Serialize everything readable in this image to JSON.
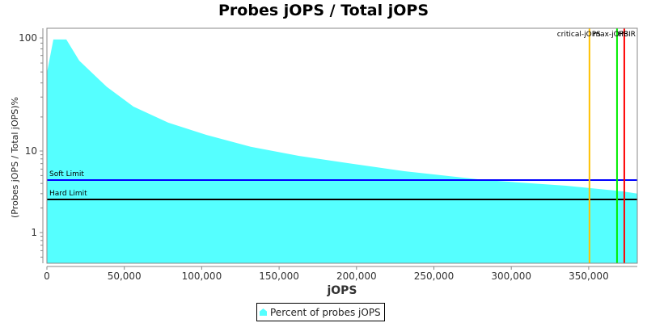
{
  "chart_data": {
    "type": "area",
    "title": "Probes jOPS / Total jOPS",
    "xlabel": "jOPS",
    "ylabel": "(Probes jOPS / Total jOPS)%",
    "y_scale": "log",
    "xlim": [
      0,
      381400
    ],
    "ylim": [
      0.5,
      130
    ],
    "x_ticks": [
      0,
      50000,
      100000,
      150000,
      200000,
      250000,
      300000,
      350000
    ],
    "x_tick_labels": [
      "0",
      "50,000",
      "100,000",
      "150,000",
      "200,000",
      "250,000",
      "300,000",
      "350,000"
    ],
    "y_ticks": [
      1,
      10,
      100
    ],
    "y_tick_labels": [
      "1",
      "10",
      "100"
    ],
    "grid": false,
    "legend_position": "bottom",
    "series": [
      {
        "name": "Percent of probes jOPS",
        "color": "#55ffff",
        "x": [
          0,
          4180,
          12540,
          20900,
          38660,
          55900,
          78370,
          102900,
          131660,
          163000,
          194360,
          230930,
          283180,
          335420,
          372000,
          381400
        ],
        "values": [
          49,
          97,
          97,
          63,
          37,
          24.7,
          17.8,
          13.9,
          10.9,
          8.7,
          7.1,
          5.65,
          4.4,
          3.75,
          3.2,
          3.0
        ]
      }
    ],
    "horizontal_lines": [
      {
        "label": "Soft Limit",
        "value": 4.4,
        "color": "#0000ff"
      },
      {
        "label": "Hard Limit",
        "value": 2.55,
        "color": "#000000"
      }
    ],
    "vertical_lines": [
      {
        "label": "critical-jOPS",
        "value": 350500,
        "color": "#ffc000"
      },
      {
        "label": "max-jOPS",
        "value": 368300,
        "color": "#00ee00"
      },
      {
        "label": "HBIR",
        "value": 373000,
        "color": "#ff0000"
      }
    ]
  },
  "legend": {
    "items": [
      {
        "label": "Percent of probes jOPS",
        "color": "#55ffff"
      }
    ]
  }
}
